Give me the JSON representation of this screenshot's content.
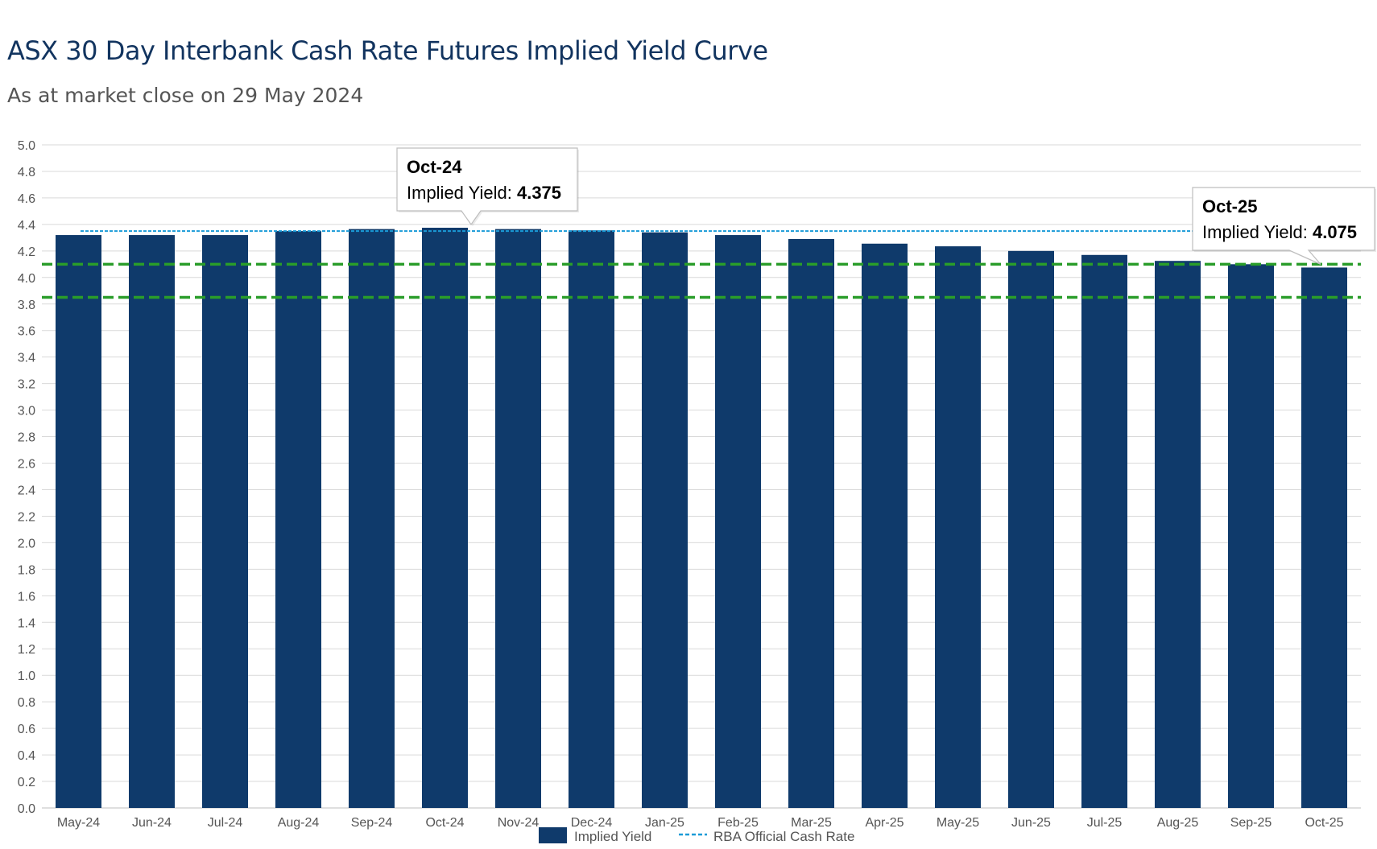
{
  "chart_data": {
    "type": "bar",
    "title": "ASX 30 Day Interbank Cash Rate Futures Implied Yield Curve",
    "subtitle": "As at market close on 29 May 2024",
    "categories": [
      "May-24",
      "Jun-24",
      "Jul-24",
      "Aug-24",
      "Sep-24",
      "Oct-24",
      "Nov-24",
      "Dec-24",
      "Jan-25",
      "Feb-25",
      "Mar-25",
      "Apr-25",
      "May-25",
      "Jun-25",
      "Jul-25",
      "Aug-25",
      "Sep-25",
      "Oct-25"
    ],
    "series": [
      {
        "name": "Implied Yield",
        "values": [
          4.32,
          4.32,
          4.32,
          4.35,
          4.365,
          4.375,
          4.365,
          4.355,
          4.34,
          4.32,
          4.29,
          4.255,
          4.235,
          4.2,
          4.17,
          4.125,
          4.1,
          4.075
        ]
      }
    ],
    "reference_lines": [
      {
        "name": "RBA Official Cash Rate",
        "value": 4.35,
        "style": "dotted",
        "color": "#1a9bd7"
      },
      {
        "value": 4.1,
        "style": "dashed",
        "color": "#2a9d2a"
      },
      {
        "value": 3.85,
        "style": "dashed",
        "color": "#2a9d2a"
      }
    ],
    "ylim": [
      0,
      5.0
    ],
    "ytick_step": 0.2,
    "grid": true,
    "legend_placement": "bottom-center",
    "colors": {
      "bar": "#0f3a6b",
      "cash_rate": "#1a9bd7",
      "dashed": "#2a9d2a",
      "grid": "#d9d9d9"
    },
    "tooltips": [
      {
        "category": "Oct-24",
        "label": "Implied Yield:",
        "value": "4.375"
      },
      {
        "category": "Oct-25",
        "label": "Implied Yield:",
        "value": "4.075"
      }
    ]
  }
}
